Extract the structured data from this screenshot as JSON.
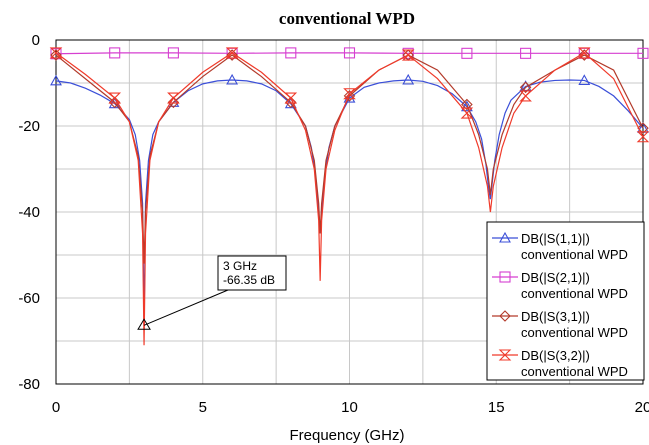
{
  "chart_data": {
    "type": "line",
    "title": "conventional WPD",
    "xlabel": "Frequency (GHz)",
    "ylabel": "",
    "xlim": [
      0,
      20
    ],
    "ylim": [
      -80,
      0
    ],
    "x_ticks": [
      "0",
      "5",
      "10",
      "15",
      "20"
    ],
    "y_ticks": [
      "0",
      "-20",
      "-40",
      "-60",
      "-80"
    ],
    "grid": true,
    "legend_position": "bottom-right",
    "series": [
      {
        "name": "DB(|S(1,1)|)",
        "name2": "conventional WPD",
        "color": "#3b4fd8",
        "marker": "triangle-up",
        "x": [
          0,
          0.5,
          1,
          1.5,
          2,
          2.5,
          2.7,
          2.85,
          2.95,
          3,
          3.05,
          3.15,
          3.3,
          3.5,
          4,
          4.5,
          5,
          5.5,
          6,
          6.5,
          7,
          7.5,
          8,
          8.5,
          8.7,
          8.85,
          8.95,
          9,
          9.05,
          9.15,
          9.3,
          9.5,
          10,
          10.5,
          11,
          11.5,
          12,
          12.5,
          13,
          13.5,
          14,
          14.3,
          14.5,
          14.65,
          14.75,
          14.8,
          14.85,
          14.95,
          15.1,
          15.3,
          15.5,
          16,
          16.5,
          17,
          17.5,
          18,
          18.5,
          19,
          19.5,
          20
        ],
        "y": [
          -9.5,
          -10,
          -11.2,
          -12.8,
          -14.8,
          -18.5,
          -22,
          -28,
          -38,
          -66.35,
          -38,
          -28,
          -22,
          -19,
          -14.5,
          -11.8,
          -10.2,
          -9.5,
          -9.3,
          -9.5,
          -10.2,
          -11.8,
          -14.8,
          -20,
          -25,
          -32,
          -40,
          -45,
          -40,
          -32,
          -25,
          -20,
          -13.5,
          -11,
          -10,
          -9.5,
          -9.3,
          -9.6,
          -10.6,
          -12.5,
          -15.5,
          -19,
          -23,
          -29,
          -35,
          -37,
          -34,
          -28,
          -22,
          -17,
          -14,
          -10.8,
          -9.8,
          -9.4,
          -9.3,
          -9.4,
          -10.8,
          -13,
          -16.5,
          -20.5
        ]
      },
      {
        "name": "DB(|S(2,1)|)",
        "name2": "conventional WPD",
        "color": "#d63fd0",
        "marker": "square",
        "x": [
          0,
          2,
          4,
          6,
          8,
          10,
          12,
          14,
          16,
          18,
          20
        ],
        "y": [
          -3.2,
          -3.0,
          -3.0,
          -3.1,
          -3.0,
          -3.0,
          -3.1,
          -3.1,
          -3.1,
          -3.1,
          -3.1
        ]
      },
      {
        "name": "DB(|S(3,1)|)",
        "name2": "conventional WPD",
        "color": "#b33a2a",
        "marker": "diamond",
        "x": [
          0,
          2,
          2.5,
          2.8,
          2.95,
          3,
          3.05,
          3.2,
          3.5,
          4,
          5,
          6,
          7,
          8,
          8.5,
          8.8,
          8.95,
          9,
          9.05,
          9.2,
          9.5,
          10,
          11,
          12,
          13,
          14,
          14.4,
          14.7,
          14.8,
          14.9,
          15.2,
          15.6,
          16,
          17,
          18,
          19,
          20
        ],
        "y": [
          -3.5,
          -14.5,
          -19,
          -27,
          -40,
          -52,
          -40,
          -27,
          -19,
          -14.5,
          -8.5,
          -3.5,
          -8.5,
          -14.5,
          -20,
          -28,
          -38,
          -45,
          -38,
          -28,
          -20,
          -13,
          -7,
          -3.5,
          -7,
          -15,
          -22,
          -30,
          -36,
          -30,
          -22,
          -15,
          -11,
          -7,
          -3.5,
          -7,
          -20.5
        ]
      },
      {
        "name": "DB(|S(3,2)|)",
        "name2": "conventional WPD",
        "color": "#f03a2a",
        "marker": "hourglass",
        "x": [
          0,
          1,
          2,
          2.5,
          2.8,
          2.95,
          3,
          3.05,
          3.2,
          3.5,
          4,
          5,
          6,
          7,
          8,
          8.5,
          8.8,
          8.95,
          9,
          9.05,
          9.2,
          9.5,
          10,
          11,
          12,
          13,
          14,
          14.4,
          14.7,
          14.8,
          14.9,
          15.2,
          15.6,
          16,
          17,
          18,
          19,
          20
        ],
        "y": [
          -3,
          -8,
          -13.5,
          -19,
          -28,
          -45,
          -71,
          -45,
          -28,
          -19,
          -13.5,
          -7.5,
          -3,
          -7.5,
          -13.5,
          -21,
          -30,
          -42,
          -56,
          -42,
          -30,
          -21,
          -12.5,
          -7,
          -3.5,
          -9,
          -17,
          -25,
          -34,
          -40,
          -34,
          -25,
          -17,
          -13,
          -7,
          -3,
          -9,
          -22.5
        ]
      }
    ],
    "annotation": {
      "x": 3,
      "y": -66.35,
      "line1": "3 GHz",
      "line2": "-66.35 dB"
    }
  }
}
